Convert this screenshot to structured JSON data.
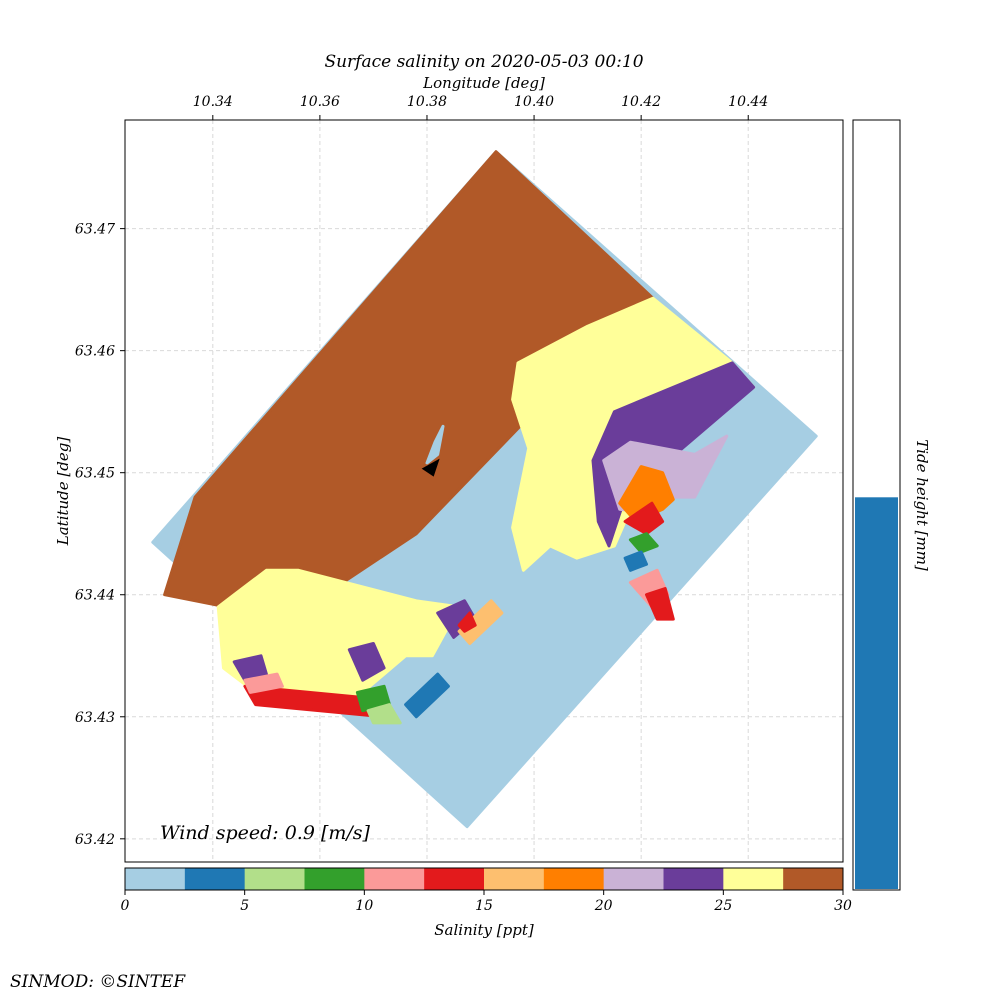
{
  "chart_data": {
    "type": "heatmap",
    "title": "Surface salinity on 2020-05-03 00:10",
    "xlabel": "Longitude [deg]",
    "ylabel": "Latitude [deg]",
    "xlim": [
      10.3236,
      10.4577
    ],
    "ylim": [
      63.4181,
      63.4789
    ],
    "x_ticks": [
      "10.34",
      "10.36",
      "10.38",
      "10.40",
      "10.42",
      "10.44"
    ],
    "y_ticks": [
      "63.42",
      "63.43",
      "63.44",
      "63.45",
      "63.46",
      "63.47"
    ],
    "grid": true,
    "annotation": "Wind speed: 0.9 [m/s]",
    "colorbar": {
      "label": "Salinity [ppt]",
      "range": [
        0,
        30
      ],
      "ticks": [
        "0",
        "5",
        "10",
        "15",
        "20",
        "25",
        "30"
      ],
      "bins": 12,
      "colors": [
        "#a6cee3",
        "#1f78b4",
        "#b2df8a",
        "#33a02c",
        "#fb9a99",
        "#e31a1c",
        "#fdbf6f",
        "#ff7f00",
        "#cab2d6",
        "#6a3d9a",
        "#ffff99",
        "#b15928"
      ]
    },
    "tide": {
      "label": "Tide height [mm]",
      "fill_fraction": 0.51,
      "color": "#1f78b4"
    },
    "regions": [
      {
        "salinity": 1,
        "points": [
          [
            10.3288,
            63.4443
          ],
          [
            10.3929,
            63.4763
          ],
          [
            10.4527,
            63.453
          ],
          [
            10.3875,
            63.421
          ]
        ]
      },
      {
        "salinity": 29,
        "points": [
          [
            10.3367,
            63.448
          ],
          [
            10.3929,
            63.4763
          ],
          [
            10.4222,
            63.4643
          ],
          [
            10.4,
            63.455
          ],
          [
            10.378,
            63.445
          ],
          [
            10.354,
            63.438
          ],
          [
            10.331,
            63.44
          ]
        ]
      },
      {
        "salinity": 26,
        "points": [
          [
            10.4222,
            63.4643
          ],
          [
            10.437,
            63.459
          ],
          [
            10.441,
            63.457
          ],
          [
            10.423,
            63.452
          ],
          [
            10.418,
            63.447
          ],
          [
            10.415,
            63.444
          ],
          [
            10.408,
            63.443
          ],
          [
            10.403,
            63.444
          ],
          [
            10.398,
            63.442
          ],
          [
            10.396,
            63.4455
          ],
          [
            10.399,
            63.452
          ],
          [
            10.396,
            63.456
          ],
          [
            10.397,
            63.459
          ],
          [
            10.41,
            63.462
          ]
        ]
      },
      {
        "salinity": 26,
        "points": [
          [
            10.35,
            63.442
          ],
          [
            10.356,
            63.442
          ],
          [
            10.378,
            63.4395
          ],
          [
            10.386,
            63.439
          ],
          [
            10.381,
            63.435
          ],
          [
            10.376,
            63.435
          ],
          [
            10.368,
            63.432
          ],
          [
            10.36,
            63.431
          ],
          [
            10.348,
            63.432
          ],
          [
            10.342,
            63.434
          ],
          [
            10.341,
            63.439
          ],
          [
            10.344,
            63.44
          ]
        ]
      },
      {
        "salinity": 24,
        "points": [
          [
            10.437,
            63.459
          ],
          [
            10.441,
            63.457
          ],
          [
            10.417,
            63.448
          ],
          [
            10.414,
            63.444
          ],
          [
            10.412,
            63.446
          ],
          [
            10.411,
            63.451
          ],
          [
            10.415,
            63.455
          ]
        ]
      },
      {
        "salinity": 21,
        "points": [
          [
            10.413,
            63.451
          ],
          [
            10.418,
            63.4525
          ],
          [
            10.43,
            63.4515
          ],
          [
            10.436,
            63.453
          ],
          [
            10.43,
            63.448
          ],
          [
            10.425,
            63.448
          ],
          [
            10.42,
            63.4468
          ],
          [
            10.416,
            63.447
          ]
        ]
      },
      {
        "salinity": 19,
        "points": [
          [
            10.416,
            63.4475
          ],
          [
            10.42,
            63.4505
          ],
          [
            10.424,
            63.45
          ],
          [
            10.426,
            63.4478
          ],
          [
            10.424,
            63.447
          ],
          [
            10.419,
            63.446
          ]
        ]
      },
      {
        "salinity": 14,
        "points": [
          [
            10.417,
            63.446
          ],
          [
            10.422,
            63.4475
          ],
          [
            10.424,
            63.446
          ],
          [
            10.421,
            63.445
          ]
        ]
      },
      {
        "salinity": 9,
        "points": [
          [
            10.418,
            63.4445
          ],
          [
            10.421,
            63.445
          ],
          [
            10.423,
            63.444
          ],
          [
            10.42,
            63.4435
          ]
        ]
      },
      {
        "salinity": 11,
        "points": [
          [
            10.418,
            63.441
          ],
          [
            10.423,
            63.442
          ],
          [
            10.425,
            63.44
          ],
          [
            10.422,
            63.439
          ]
        ]
      },
      {
        "salinity": 14,
        "points": [
          [
            10.421,
            63.44
          ],
          [
            10.4245,
            63.4405
          ],
          [
            10.426,
            63.438
          ],
          [
            10.423,
            63.438
          ]
        ]
      },
      {
        "salinity": 24,
        "points": [
          [
            10.382,
            63.4385
          ],
          [
            10.387,
            63.4395
          ],
          [
            10.389,
            63.438
          ],
          [
            10.385,
            63.4365
          ]
        ]
      },
      {
        "salinity": 24,
        "points": [
          [
            10.344,
            63.4345
          ],
          [
            10.349,
            63.435
          ],
          [
            10.35,
            63.4335
          ],
          [
            10.346,
            63.433
          ]
        ]
      },
      {
        "salinity": 24,
        "points": [
          [
            10.3655,
            63.4355
          ],
          [
            10.37,
            63.436
          ],
          [
            10.372,
            63.434
          ],
          [
            10.368,
            63.433
          ]
        ]
      },
      {
        "salinity": 14,
        "points": [
          [
            10.346,
            63.4325
          ],
          [
            10.37,
            63.4315
          ],
          [
            10.372,
            63.43
          ],
          [
            10.348,
            63.431
          ]
        ]
      },
      {
        "salinity": 11,
        "points": [
          [
            10.346,
            63.433
          ],
          [
            10.352,
            63.4335
          ],
          [
            10.353,
            63.4325
          ],
          [
            10.347,
            63.432
          ]
        ]
      },
      {
        "salinity": 9,
        "points": [
          [
            10.367,
            63.432
          ],
          [
            10.372,
            63.4325
          ],
          [
            10.373,
            63.431
          ],
          [
            10.368,
            63.4305
          ]
        ]
      },
      {
        "salinity": 6,
        "points": [
          [
            10.369,
            63.4305
          ],
          [
            10.373,
            63.431
          ],
          [
            10.375,
            63.4295
          ],
          [
            10.37,
            63.4295
          ]
        ]
      },
      {
        "salinity": 4,
        "points": [
          [
            10.376,
            63.431
          ],
          [
            10.382,
            63.4335
          ],
          [
            10.384,
            63.4325
          ],
          [
            10.378,
            63.43
          ]
        ]
      },
      {
        "salinity": 4,
        "points": [
          [
            10.417,
            63.443
          ],
          [
            10.42,
            63.4435
          ],
          [
            10.421,
            63.4425
          ],
          [
            10.418,
            63.442
          ]
        ]
      },
      {
        "salinity": 16,
        "points": [
          [
            10.386,
            63.437
          ],
          [
            10.392,
            63.4395
          ],
          [
            10.394,
            63.4385
          ],
          [
            10.388,
            63.436
          ]
        ]
      },
      {
        "salinity": 13,
        "points": [
          [
            10.386,
            63.4375
          ],
          [
            10.388,
            63.4385
          ],
          [
            10.389,
            63.4375
          ],
          [
            10.387,
            63.437
          ]
        ]
      },
      {
        "salinity": 1,
        "points": [
          [
            10.38,
            63.4508
          ],
          [
            10.382,
            63.4515
          ],
          [
            10.383,
            63.4538
          ],
          [
            10.3815,
            63.4525
          ]
        ]
      }
    ],
    "arrow": {
      "x": 10.3805,
      "y": 63.4505
    }
  }
}
